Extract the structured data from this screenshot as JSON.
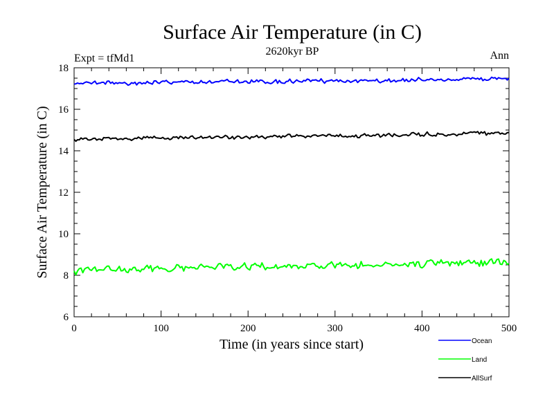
{
  "chart_data": {
    "type": "line",
    "title": "Surface Air Temperature (in C)",
    "subtitle": "2620kyr BP",
    "left_label": "Expt = tfMd1",
    "right_label": "Ann",
    "xlabel": "Time (in years since start)",
    "ylabel": "Surface Air Temperature (in C)",
    "xlim": [
      0,
      500
    ],
    "ylim": [
      6,
      18
    ],
    "xticks": [
      0,
      100,
      200,
      300,
      400,
      500
    ],
    "yticks": [
      6,
      8,
      10,
      12,
      14,
      16,
      18
    ],
    "legend_position": "bottom-right, below plot",
    "series": [
      {
        "name": "Ocean",
        "color": "#0000ff",
        "mean_start": 17.25,
        "mean_end": 17.45,
        "amplitude": 0.12
      },
      {
        "name": "Land",
        "color": "#00ff00",
        "mean_start": 8.25,
        "mean_end": 8.65,
        "amplitude": 0.22
      },
      {
        "name": "AllSurf",
        "color": "#000000",
        "mean_start": 14.55,
        "mean_end": 14.85,
        "amplitude": 0.12
      }
    ]
  }
}
